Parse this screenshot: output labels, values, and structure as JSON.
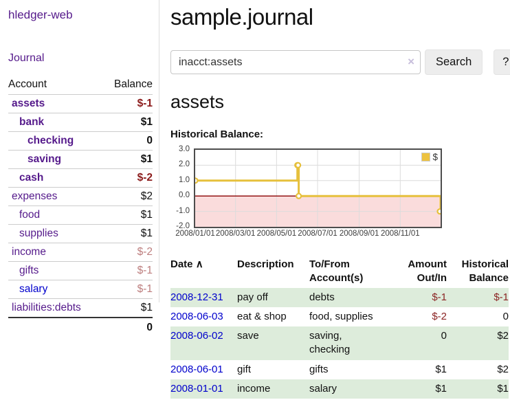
{
  "sidebar": {
    "app_title": "hledger-web",
    "journal_label": "Journal",
    "accounts": {
      "headers": {
        "account": "Account",
        "balance": "Balance"
      },
      "rows": [
        {
          "name": "assets",
          "balance": "$-1",
          "depth": 1,
          "bold": true,
          "name_color": "purple",
          "balance_color": "red"
        },
        {
          "name": "bank",
          "balance": "$1",
          "depth": 2,
          "bold": true,
          "name_color": "purple",
          "balance_color": "black"
        },
        {
          "name": "checking",
          "balance": "0",
          "depth": 3,
          "bold": true,
          "name_color": "purple",
          "balance_color": "black"
        },
        {
          "name": "saving",
          "balance": "$1",
          "depth": 3,
          "bold": true,
          "name_color": "purple",
          "balance_color": "black"
        },
        {
          "name": "cash",
          "balance": "$-2",
          "depth": 2,
          "bold": true,
          "name_color": "purple",
          "balance_color": "red"
        },
        {
          "name": "expenses",
          "balance": "$2",
          "depth": 1,
          "bold": false,
          "name_color": "purple",
          "balance_color": "black"
        },
        {
          "name": "food",
          "balance": "$1",
          "depth": 2,
          "bold": false,
          "name_color": "purple",
          "balance_color": "black"
        },
        {
          "name": "supplies",
          "balance": "$1",
          "depth": 2,
          "bold": false,
          "name_color": "purple",
          "balance_color": "black"
        },
        {
          "name": "income",
          "balance": "$-2",
          "depth": 1,
          "bold": false,
          "name_color": "purple",
          "balance_color": "rose"
        },
        {
          "name": "gifts",
          "balance": "$-1",
          "depth": 2,
          "bold": false,
          "name_color": "purple",
          "balance_color": "rose"
        },
        {
          "name": "salary",
          "balance": "$-1",
          "depth": 2,
          "bold": false,
          "name_color": "blue",
          "balance_color": "rose"
        },
        {
          "name": "liabilities:debts",
          "balance": "$1",
          "depth": 1,
          "bold": false,
          "name_color": "purple",
          "balance_color": "black"
        }
      ],
      "total": "0"
    }
  },
  "main": {
    "title": "sample.journal",
    "search": {
      "value": "inacct:assets",
      "clear_glyph": "×",
      "button_label": "Search",
      "help_label": "?"
    },
    "account_heading": "assets",
    "register": {
      "headers": {
        "date": "Date",
        "sort_indicator": "∧",
        "description": "Description",
        "accounts": "To/From Account(s)",
        "amount": "Amount Out/In",
        "balance": "Historical Balance"
      },
      "rows": [
        {
          "date": "2008-12-31",
          "description": "pay off",
          "accounts": "debts",
          "amount": "$-1",
          "amount_color": "red",
          "balance": "$-1",
          "balance_color": "red",
          "striped": true
        },
        {
          "date": "2008-06-03",
          "description": "eat & shop",
          "accounts": "food, supplies",
          "amount": "$-2",
          "amount_color": "red",
          "balance": "0",
          "balance_color": "black",
          "striped": false
        },
        {
          "date": "2008-06-02",
          "description": "save",
          "accounts": "saving, checking",
          "amount": "0",
          "amount_color": "black",
          "balance": "$2",
          "balance_color": "black",
          "striped": true
        },
        {
          "date": "2008-06-01",
          "description": "gift",
          "accounts": "gifts",
          "amount": "$1",
          "amount_color": "black",
          "balance": "$2",
          "balance_color": "black",
          "striped": false
        },
        {
          "date": "2008-01-01",
          "description": "income",
          "accounts": "salary",
          "amount": "$1",
          "amount_color": "black",
          "balance": "$1",
          "balance_color": "black",
          "striped": true
        }
      ]
    }
  },
  "colors": {
    "purple_link": "#551a8b",
    "blue_link": "#0000cc",
    "neg_strong": "#8b1a1a",
    "neg_soft": "#bd7e7e",
    "stripe_green": "#ddecdb",
    "chart_line": "#e6c03c",
    "chart_marker_fill": "#ffffff",
    "chart_negative_fill": "#fadcdc",
    "zero_line": "#8b0000",
    "grid_line": "#dcdcdc",
    "plot_border": "#4d4d4d"
  },
  "chart_data": {
    "type": "line",
    "step": true,
    "title": "Historical Balance:",
    "x_start": "2008-01-01",
    "x_end": "2008-12-31",
    "ylim": [
      -2,
      3
    ],
    "y_ticks": [
      "3.0",
      "2.0",
      "1.0",
      "0.0",
      "-1.0",
      "-2.0"
    ],
    "x_ticks": [
      "2008/01/01",
      "2008/03/01",
      "2008/05/01",
      "2008/07/01",
      "2008/09/01",
      "2008/11/01"
    ],
    "legend": {
      "label": "$",
      "position": "top-right"
    },
    "series": [
      {
        "name": "$",
        "points": [
          {
            "date": "2008-01-01",
            "value": 1
          },
          {
            "date": "2008-06-01",
            "value": 2
          },
          {
            "date": "2008-06-02",
            "value": 2
          },
          {
            "date": "2008-06-03",
            "value": 0
          },
          {
            "date": "2008-12-31",
            "value": -1
          }
        ]
      }
    ]
  }
}
